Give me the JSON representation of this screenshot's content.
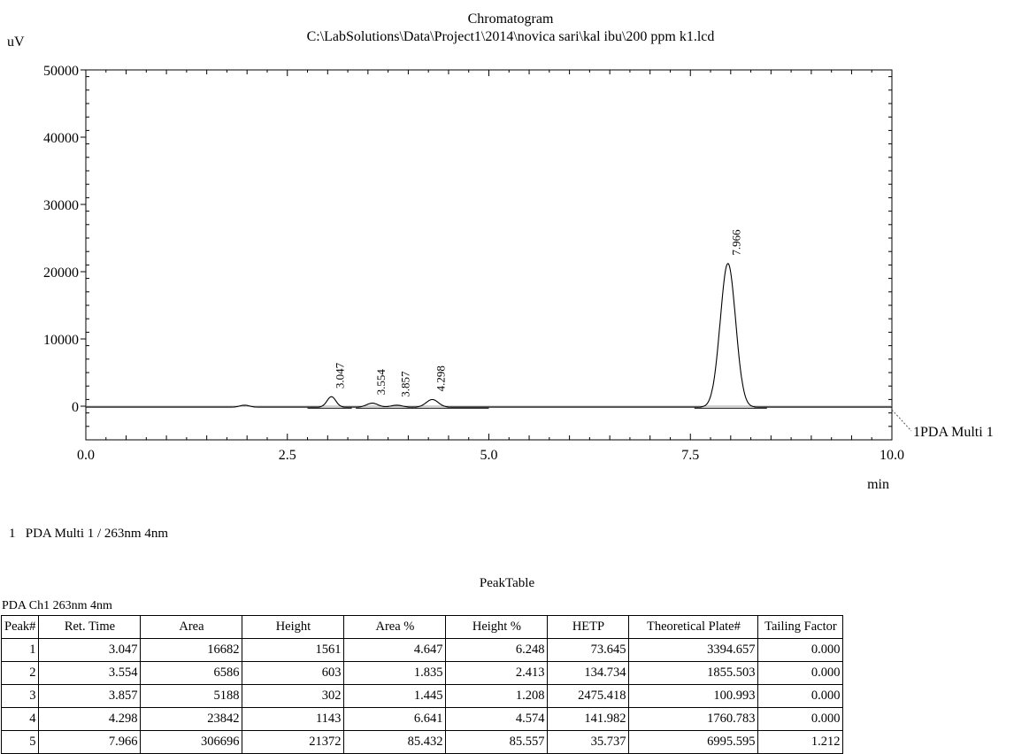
{
  "chart_data": {
    "type": "line",
    "title": "Chromatogram",
    "subtitle": "C:\\LabSolutions\\Data\\Project1\\2014\\novica sari\\kal ibu\\200 ppm k1.lcd",
    "xlabel": "min",
    "ylabel": "uV",
    "xlim": [
      0.0,
      10.0
    ],
    "ylim": [
      -5000,
      50000
    ],
    "x_tick_labels": [
      "0.0",
      "2.5",
      "5.0",
      "7.5",
      "10.0"
    ],
    "x_ticks": [
      0.0,
      2.5,
      5.0,
      7.5,
      10.0
    ],
    "y_tick_labels": [
      "0",
      "10000",
      "20000",
      "30000",
      "40000",
      "50000"
    ],
    "y_ticks": [
      0,
      10000,
      20000,
      30000,
      40000,
      50000
    ],
    "grid": false,
    "legend": "right",
    "series": [
      {
        "name": "1PDA Multi 1",
        "baseline": -150,
        "peaks": [
          {
            "rt": 1.97,
            "height": 300,
            "sigma": 0.06,
            "label": ""
          },
          {
            "rt": 3.047,
            "height": 1561,
            "sigma": 0.055,
            "label": "3.047"
          },
          {
            "rt": 3.554,
            "height": 603,
            "sigma": 0.07,
            "label": "3.554"
          },
          {
            "rt": 3.857,
            "height": 302,
            "sigma": 0.07,
            "label": "3.857"
          },
          {
            "rt": 4.298,
            "height": 1143,
            "sigma": 0.075,
            "label": "4.298"
          },
          {
            "rt": 7.966,
            "height": 21372,
            "sigma": 0.095,
            "label": "7.966"
          }
        ]
      }
    ]
  },
  "channel_caption": "1   PDA Multi 1 / 263nm 4nm",
  "peak_table": {
    "title": "PeakTable",
    "channel": "PDA Ch1 263nm 4nm",
    "columns": [
      "Peak#",
      "Ret. Time",
      "Area",
      "Height",
      "Area %",
      "Height %",
      "HETP",
      "Theoretical Plate#",
      "Tailing Factor"
    ],
    "rows": [
      [
        "1",
        "3.047",
        "16682",
        "1561",
        "4.647",
        "6.248",
        "73.645",
        "3394.657",
        "0.000"
      ],
      [
        "2",
        "3.554",
        "6586",
        "603",
        "1.835",
        "2.413",
        "134.734",
        "1855.503",
        "0.000"
      ],
      [
        "3",
        "3.857",
        "5188",
        "302",
        "1.445",
        "1.208",
        "2475.418",
        "100.993",
        "0.000"
      ],
      [
        "4",
        "4.298",
        "23842",
        "1143",
        "6.641",
        "4.574",
        "141.982",
        "1760.783",
        "0.000"
      ],
      [
        "5",
        "7.966",
        "306696",
        "21372",
        "85.432",
        "85.557",
        "35.737",
        "6995.595",
        "1.212"
      ]
    ]
  }
}
